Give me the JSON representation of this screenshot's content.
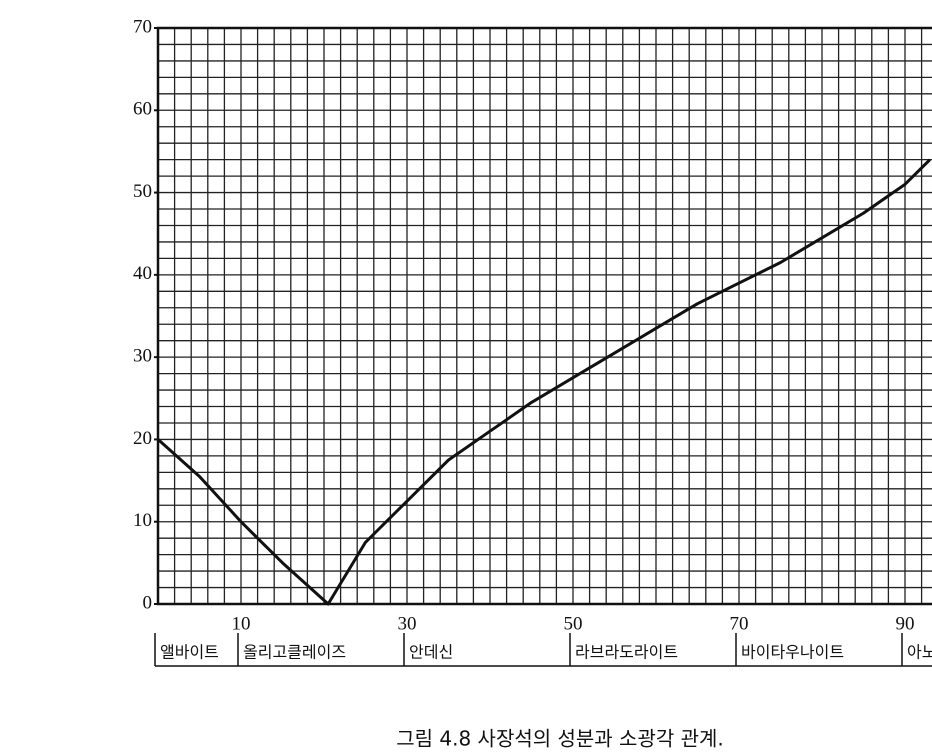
{
  "chart_data": {
    "type": "line",
    "caption": "그림 4.8  사장석의 성분과 소광각 관계.",
    "x": [
      0,
      5,
      10,
      15,
      20.5,
      25,
      30,
      35,
      40,
      45,
      50,
      55,
      60,
      65,
      70,
      75,
      80,
      85,
      90,
      93
    ],
    "series": [
      {
        "color": "#111111",
        "values": [
          20,
          15.5,
          10,
          5,
          0,
          7.5,
          12.5,
          17.5,
          21,
          24.5,
          27.5,
          30.5,
          33.5,
          36.5,
          39,
          41.5,
          44.5,
          47.5,
          51,
          54
        ]
      }
    ],
    "xlim": [
      0,
      100
    ],
    "ylim": [
      0,
      70
    ],
    "xticks": [
      10,
      30,
      50,
      70,
      90
    ],
    "yticks": [
      0,
      10,
      20,
      30,
      40,
      50,
      60,
      70
    ],
    "grid": true,
    "grid_step": 2,
    "ranges": [
      {
        "label": "앨바이트",
        "start": 0,
        "end": 10
      },
      {
        "label": "올리고클레이즈",
        "start": 10,
        "end": 30
      },
      {
        "label": "안데신",
        "start": 30,
        "end": 50
      },
      {
        "label": "라브라도라이트",
        "start": 50,
        "end": 70
      },
      {
        "label": "바이타우나이트",
        "start": 70,
        "end": 90
      },
      {
        "label": "아노사이트",
        "start": 90,
        "end": 100
      }
    ]
  }
}
